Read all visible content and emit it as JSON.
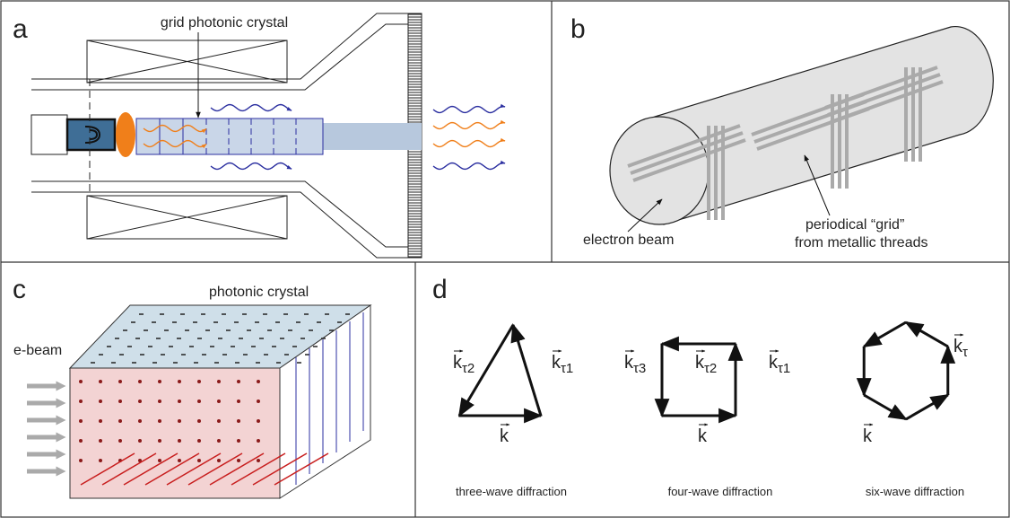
{
  "panels": {
    "a": {
      "label": "a",
      "annotation": "grid photonic crystal"
    },
    "b": {
      "label": "b",
      "annotations": [
        "electron beam",
        "periodical “grid”",
        "from metallic threads"
      ]
    },
    "c": {
      "label": "c",
      "annotations": [
        "photonic crystal",
        "e-beam"
      ]
    },
    "d": {
      "label": "d",
      "diagrams": [
        {
          "caption": "three-wave diffraction",
          "vectors": [
            {
              "symbol": "k",
              "subscript": "τ2"
            },
            {
              "symbol": "k",
              "subscript": "τ1"
            },
            {
              "symbol": "k"
            }
          ]
        },
        {
          "caption": "four-wave diffraction",
          "vectors": [
            {
              "symbol": "k",
              "subscript": "τ3"
            },
            {
              "symbol": "k",
              "subscript": "τ2"
            },
            {
              "symbol": "k",
              "subscript": "τ1"
            },
            {
              "symbol": "k"
            }
          ]
        },
        {
          "caption": "six-wave diffraction",
          "vectors": [
            {
              "symbol": "k",
              "subscript": "τ"
            },
            {
              "symbol": "k"
            }
          ]
        }
      ]
    }
  }
}
